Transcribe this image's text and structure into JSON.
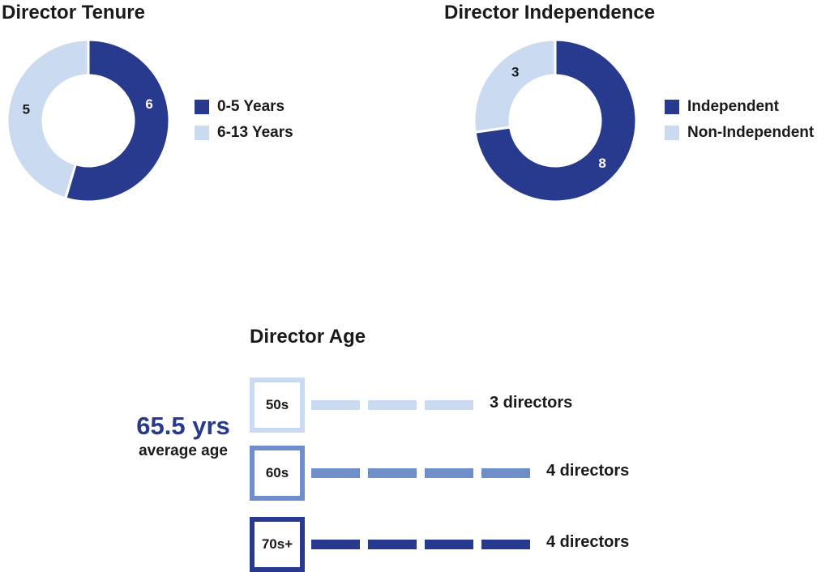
{
  "colors": {
    "dark": "#273a8e",
    "mid": "#6f8fcb",
    "light": "#c9daf1"
  },
  "chart_data": [
    {
      "type": "pie",
      "title": "Director Tenure",
      "donut": true,
      "slices": [
        {
          "label": "0-5 Years",
          "value": 6,
          "color": "#273a8e"
        },
        {
          "label": "6-13 Years",
          "value": 5,
          "color": "#c9daf1"
        }
      ]
    },
    {
      "type": "pie",
      "title": "Director Independence",
      "donut": true,
      "slices": [
        {
          "label": "Independent",
          "value": 8,
          "color": "#273a8e"
        },
        {
          "label": "Non-Independent",
          "value": 3,
          "color": "#c9daf1"
        }
      ]
    },
    {
      "type": "bar",
      "title": "Director Age",
      "average_value": "65.5 yrs",
      "average_label": "average age",
      "categories": [
        "50s",
        "60s",
        "70s+"
      ],
      "values": [
        3,
        4,
        4
      ],
      "value_labels": [
        "3 directors",
        "4 directors",
        "4 directors"
      ],
      "colors": [
        "#c9daf1",
        "#6f8fcb",
        "#273a8e"
      ]
    }
  ]
}
